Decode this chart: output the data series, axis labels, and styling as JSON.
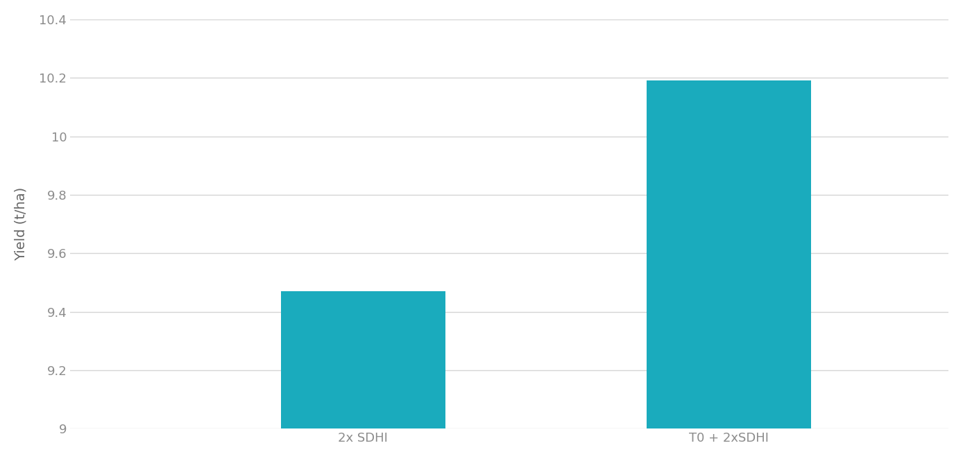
{
  "categories": [
    "2x SDHI",
    "T0 + 2xSDHI"
  ],
  "values": [
    9.47,
    10.19
  ],
  "bar_color": "#1AABBD",
  "bar_width": 0.45,
  "ylabel": "Yield (t/ha)",
  "ylim": [
    9.0,
    10.4
  ],
  "ytick_values": [
    9.0,
    9.2,
    9.4,
    9.6,
    9.8,
    10.0,
    10.2,
    10.4
  ],
  "ytick_labels": [
    "9",
    "9.2",
    "9.4",
    "9.6",
    "9.8",
    "10",
    "10.2",
    "10.4"
  ],
  "background_color": "#ffffff",
  "grid_color": "#d5d5d5",
  "tick_label_color": "#8c8c8c",
  "axis_label_color": "#666666",
  "ylabel_fontsize": 14,
  "tick_fontsize": 13,
  "xtick_fontsize": 13,
  "xlim": [
    -0.5,
    1.9
  ]
}
